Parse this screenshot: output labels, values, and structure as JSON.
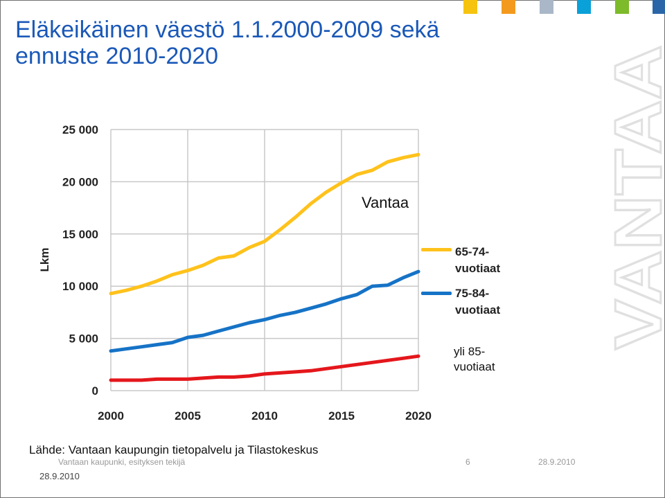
{
  "title_line1": "Eläkeikäinen väestö 1.1.2000-2009 sekä",
  "title_line2": "ennuste 2010-2020",
  "brand_text": "VANTAA",
  "colors": {
    "title": "#1a58b8",
    "series_65_74": "#ffc21c",
    "series_75_84": "#1673c6",
    "series_85": "#e4171c",
    "grid": "#c8c8c8",
    "swatches": [
      "#f6c40f",
      "#f39a1e",
      "#a9b7c8",
      "#0aa0d8",
      "#7dbb2b",
      "#2a66a7"
    ]
  },
  "vantaa_label": "Vantaa",
  "label_85_line1": "yli 85-",
  "label_85_line2": "vuotiaat",
  "source": "Lähde: Vantaan kaupungin tietopalvelu ja Tilastokeskus",
  "footer": {
    "left": "Vantaan kaupunki, esityksen tekijä",
    "page": "6",
    "date": "28.9.2010",
    "bottom_date": "28.9.2010"
  },
  "chart_data": {
    "type": "line",
    "ylabel": "Lkm",
    "xlabel": "",
    "xlim": [
      2000,
      2020
    ],
    "ylim": [
      0,
      25000
    ],
    "x_ticks": [
      2000,
      2005,
      2010,
      2015,
      2020
    ],
    "y_ticks": [
      0,
      5000,
      10000,
      15000,
      20000,
      25000
    ],
    "y_tick_labels": [
      "0",
      "5 000",
      "10 000",
      "15 000",
      "20 000",
      "25 000"
    ],
    "grid": true,
    "legend_position": "right",
    "x": [
      2000,
      2001,
      2002,
      2003,
      2004,
      2005,
      2006,
      2007,
      2008,
      2009,
      2010,
      2011,
      2012,
      2013,
      2014,
      2015,
      2016,
      2017,
      2018,
      2019,
      2020
    ],
    "series": [
      {
        "name": "65-74-vuotiaat",
        "legend_line1": "65-74-",
        "legend_line2": "vuotiaat",
        "color": "#ffc21c",
        "values": [
          9300,
          9600,
          10000,
          10500,
          11100,
          11500,
          12000,
          12700,
          12900,
          13700,
          14300,
          15400,
          16600,
          17900,
          19000,
          19900,
          20700,
          21100,
          21900,
          22300,
          22600
        ]
      },
      {
        "name": "75-84-vuotiaat",
        "legend_line1": "75-84-",
        "legend_line2": "vuotiaat",
        "color": "#1673c6",
        "values": [
          3800,
          4000,
          4200,
          4400,
          4600,
          5100,
          5300,
          5700,
          6100,
          6500,
          6800,
          7200,
          7500,
          7900,
          8300,
          8800,
          9200,
          10000,
          10100,
          10800,
          11400
        ]
      },
      {
        "name": "yli 85-vuotiaat",
        "color": "#e4171c",
        "values": [
          1000,
          1000,
          1000,
          1100,
          1100,
          1100,
          1200,
          1300,
          1300,
          1400,
          1600,
          1700,
          1800,
          1900,
          2100,
          2300,
          2500,
          2700,
          2900,
          3100,
          3300
        ]
      }
    ]
  }
}
